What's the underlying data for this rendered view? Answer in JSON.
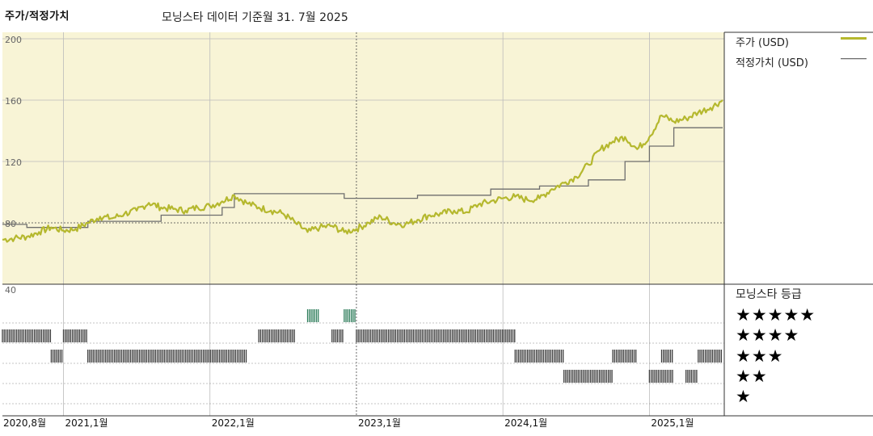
{
  "header": {
    "title": "주가/적정가치",
    "subtitle": "모닝스타 데이터 기준월 31. 7월 2025"
  },
  "legend": {
    "price_label": "주가 (USD)",
    "fair_label": "적정가치 (USD)",
    "price_color": "#b5b82e",
    "fair_color": "#6e6e6e"
  },
  "rating_panel": {
    "title": "모닝스타 등급",
    "rows": [
      "★★★★★",
      "★★★★",
      "★★★",
      "★★",
      "★"
    ]
  },
  "colors": {
    "plot_bg": "#f8f4d6",
    "rating_dark": "#3a3a3a",
    "rating_five": "#2e7d5b"
  },
  "chart_data": [
    {
      "type": "line",
      "x_domain": [
        "2020-08",
        "2025-07"
      ],
      "ylim": [
        40,
        200
      ],
      "yticks": [
        "200",
        "160",
        "120",
        "80",
        "40"
      ],
      "xticks": [
        {
          "date": "2020-08",
          "label": "2020,8월"
        },
        {
          "date": "2021-01",
          "label": "2021,1월"
        },
        {
          "date": "2022-01",
          "label": "2022,1월"
        },
        {
          "date": "2023-01",
          "label": "2023,1월"
        },
        {
          "date": "2024-01",
          "label": "2024,1월"
        },
        {
          "date": "2025-01",
          "label": "2025,1월"
        }
      ],
      "series": [
        {
          "name": "주가 (USD)",
          "points": [
            [
              "2020-08",
              69
            ],
            [
              "2020-09",
              70
            ],
            [
              "2020-10",
              71
            ],
            [
              "2020-11",
              74
            ],
            [
              "2020-12",
              77
            ],
            [
              "2021-01",
              75
            ],
            [
              "2021-02",
              76
            ],
            [
              "2021-03",
              80
            ],
            [
              "2021-04",
              84
            ],
            [
              "2021-05",
              83
            ],
            [
              "2021-06",
              86
            ],
            [
              "2021-07",
              88
            ],
            [
              "2021-08",
              93
            ],
            [
              "2021-09",
              90
            ],
            [
              "2021-10",
              89
            ],
            [
              "2021-11",
              88
            ],
            [
              "2021-12",
              90
            ],
            [
              "2022-01",
              91
            ],
            [
              "2022-02",
              94
            ],
            [
              "2022-03",
              98
            ],
            [
              "2022-04",
              93
            ],
            [
              "2022-05",
              90
            ],
            [
              "2022-06",
              88
            ],
            [
              "2022-07",
              86
            ],
            [
              "2022-08",
              80
            ],
            [
              "2022-09",
              74
            ],
            [
              "2022-10",
              77
            ],
            [
              "2022-11",
              78
            ],
            [
              "2022-12",
              74
            ],
            [
              "2023-01",
              76
            ],
            [
              "2023-02",
              80
            ],
            [
              "2023-03",
              84
            ],
            [
              "2023-04",
              80
            ],
            [
              "2023-05",
              79
            ],
            [
              "2023-06",
              82
            ],
            [
              "2023-07",
              85
            ],
            [
              "2023-08",
              86
            ],
            [
              "2023-09",
              88
            ],
            [
              "2023-10",
              87
            ],
            [
              "2023-11",
              92
            ],
            [
              "2023-12",
              94
            ],
            [
              "2024-01",
              96
            ],
            [
              "2024-02",
              97
            ],
            [
              "2024-03",
              95
            ],
            [
              "2024-04",
              96
            ],
            [
              "2024-05",
              102
            ],
            [
              "2024-06",
              106
            ],
            [
              "2024-07",
              110
            ],
            [
              "2024-08",
              118
            ],
            [
              "2024-09",
              128
            ],
            [
              "2024-10",
              133
            ],
            [
              "2024-11",
              136
            ],
            [
              "2024-12",
              128
            ],
            [
              "2025-01",
              136
            ],
            [
              "2025-02",
              150
            ],
            [
              "2025-03",
              146
            ],
            [
              "2025-04",
              148
            ],
            [
              "2025-05",
              152
            ],
            [
              "2025-06",
              155
            ],
            [
              "2025-07",
              160
            ]
          ]
        },
        {
          "name": "적정가치 (USD)",
          "points": [
            [
              "2020-08",
              79
            ],
            [
              "2020-10",
              77
            ],
            [
              "2021-03",
              81
            ],
            [
              "2021-09",
              85
            ],
            [
              "2022-02",
              90
            ],
            [
              "2022-03",
              99
            ],
            [
              "2022-12",
              96
            ],
            [
              "2023-06",
              98
            ],
            [
              "2023-12",
              102
            ],
            [
              "2024-04",
              104
            ],
            [
              "2024-08",
              108
            ],
            [
              "2024-11",
              120
            ],
            [
              "2025-01",
              130
            ],
            [
              "2025-03",
              142
            ],
            [
              "2025-07",
              142
            ]
          ]
        }
      ]
    },
    {
      "type": "heatmap",
      "title": "모닝스타 등급",
      "ratings": [
        {
          "stars": 5,
          "periods": [
            [
              "2022-09",
              "2022-10"
            ],
            [
              "2022-12",
              "2023-01"
            ]
          ]
        },
        {
          "stars": 4,
          "periods": [
            [
              "2020-08",
              "2020-12"
            ],
            [
              "2021-01",
              "2021-03"
            ],
            [
              "2022-05",
              "2022-08"
            ],
            [
              "2022-11",
              "2022-12"
            ],
            [
              "2023-01",
              "2024-02"
            ]
          ]
        },
        {
          "stars": 3,
          "periods": [
            [
              "2020-12",
              "2021-01"
            ],
            [
              "2021-03",
              "2022-04"
            ],
            [
              "2024-02",
              "2024-06"
            ],
            [
              "2024-10",
              "2024-12"
            ],
            [
              "2025-02",
              "2025-03"
            ],
            [
              "2025-05",
              "2025-07"
            ]
          ]
        },
        {
          "stars": 2,
          "periods": [
            [
              "2024-06",
              "2024-10"
            ],
            [
              "2025-01",
              "2025-03"
            ],
            [
              "2025-04",
              "2025-05"
            ]
          ]
        },
        {
          "stars": 1,
          "periods": []
        }
      ]
    }
  ]
}
